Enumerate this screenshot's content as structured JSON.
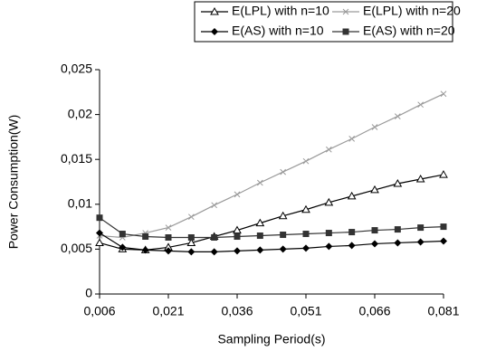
{
  "chart_data": {
    "type": "line",
    "x_label": "Sampling Period(s)",
    "y_label": "Power Consumption(W)",
    "x": [
      0.006,
      0.011,
      0.016,
      0.021,
      0.026,
      0.031,
      0.036,
      0.041,
      0.046,
      0.051,
      0.056,
      0.061,
      0.066,
      0.071,
      0.076,
      0.081
    ],
    "series": [
      {
        "name": "E(LPL) with n=10",
        "color": "#000000",
        "marker": "triangle-open",
        "values": [
          0.0057,
          0.005,
          0.0049,
          0.0052,
          0.0057,
          0.0064,
          0.0071,
          0.0079,
          0.0087,
          0.0094,
          0.0102,
          0.0109,
          0.0116,
          0.0123,
          0.0128,
          0.0133
        ]
      },
      {
        "name": "E(LPL) with n=20",
        "color": "#9a9a9a",
        "marker": "cross",
        "values": [
          0.0065,
          0.0063,
          0.0068,
          0.0074,
          0.0086,
          0.0099,
          0.0111,
          0.0124,
          0.0136,
          0.0148,
          0.0161,
          0.0173,
          0.0186,
          0.0198,
          0.0211,
          0.0223
        ]
      },
      {
        "name": "E(AS) with n=10",
        "color": "#000000",
        "marker": "diamond",
        "values": [
          0.0068,
          0.0052,
          0.0049,
          0.0048,
          0.0047,
          0.0047,
          0.0048,
          0.0049,
          0.005,
          0.0051,
          0.0053,
          0.0054,
          0.0056,
          0.0057,
          0.0058,
          0.0059
        ]
      },
      {
        "name": "E(AS) with n=20",
        "color": "#333333",
        "marker": "square",
        "values": [
          0.0085,
          0.0067,
          0.0064,
          0.0063,
          0.0063,
          0.0063,
          0.0064,
          0.0065,
          0.0066,
          0.0067,
          0.0068,
          0.0069,
          0.0071,
          0.0072,
          0.0074,
          0.0075
        ]
      }
    ],
    "xlim": [
      0.006,
      0.081
    ],
    "xticks": [
      {
        "value": 0.006,
        "label": "0,006"
      },
      {
        "value": 0.021,
        "label": "0,021"
      },
      {
        "value": 0.036,
        "label": "0,036"
      },
      {
        "value": 0.051,
        "label": "0,051"
      },
      {
        "value": 0.066,
        "label": "0,066"
      },
      {
        "value": 0.081,
        "label": "0,081"
      }
    ],
    "ylim": [
      0,
      0.025
    ],
    "yticks": [
      0,
      {
        "value": 0.005,
        "label": "0,005"
      },
      {
        "value": 0.01,
        "label": "0,01"
      },
      {
        "value": 0.015,
        "label": "0,015"
      },
      {
        "value": 0.02,
        "label": "0,02"
      },
      {
        "value": 0.025,
        "label": "0,025"
      }
    ],
    "grid": false,
    "legend": "top"
  }
}
